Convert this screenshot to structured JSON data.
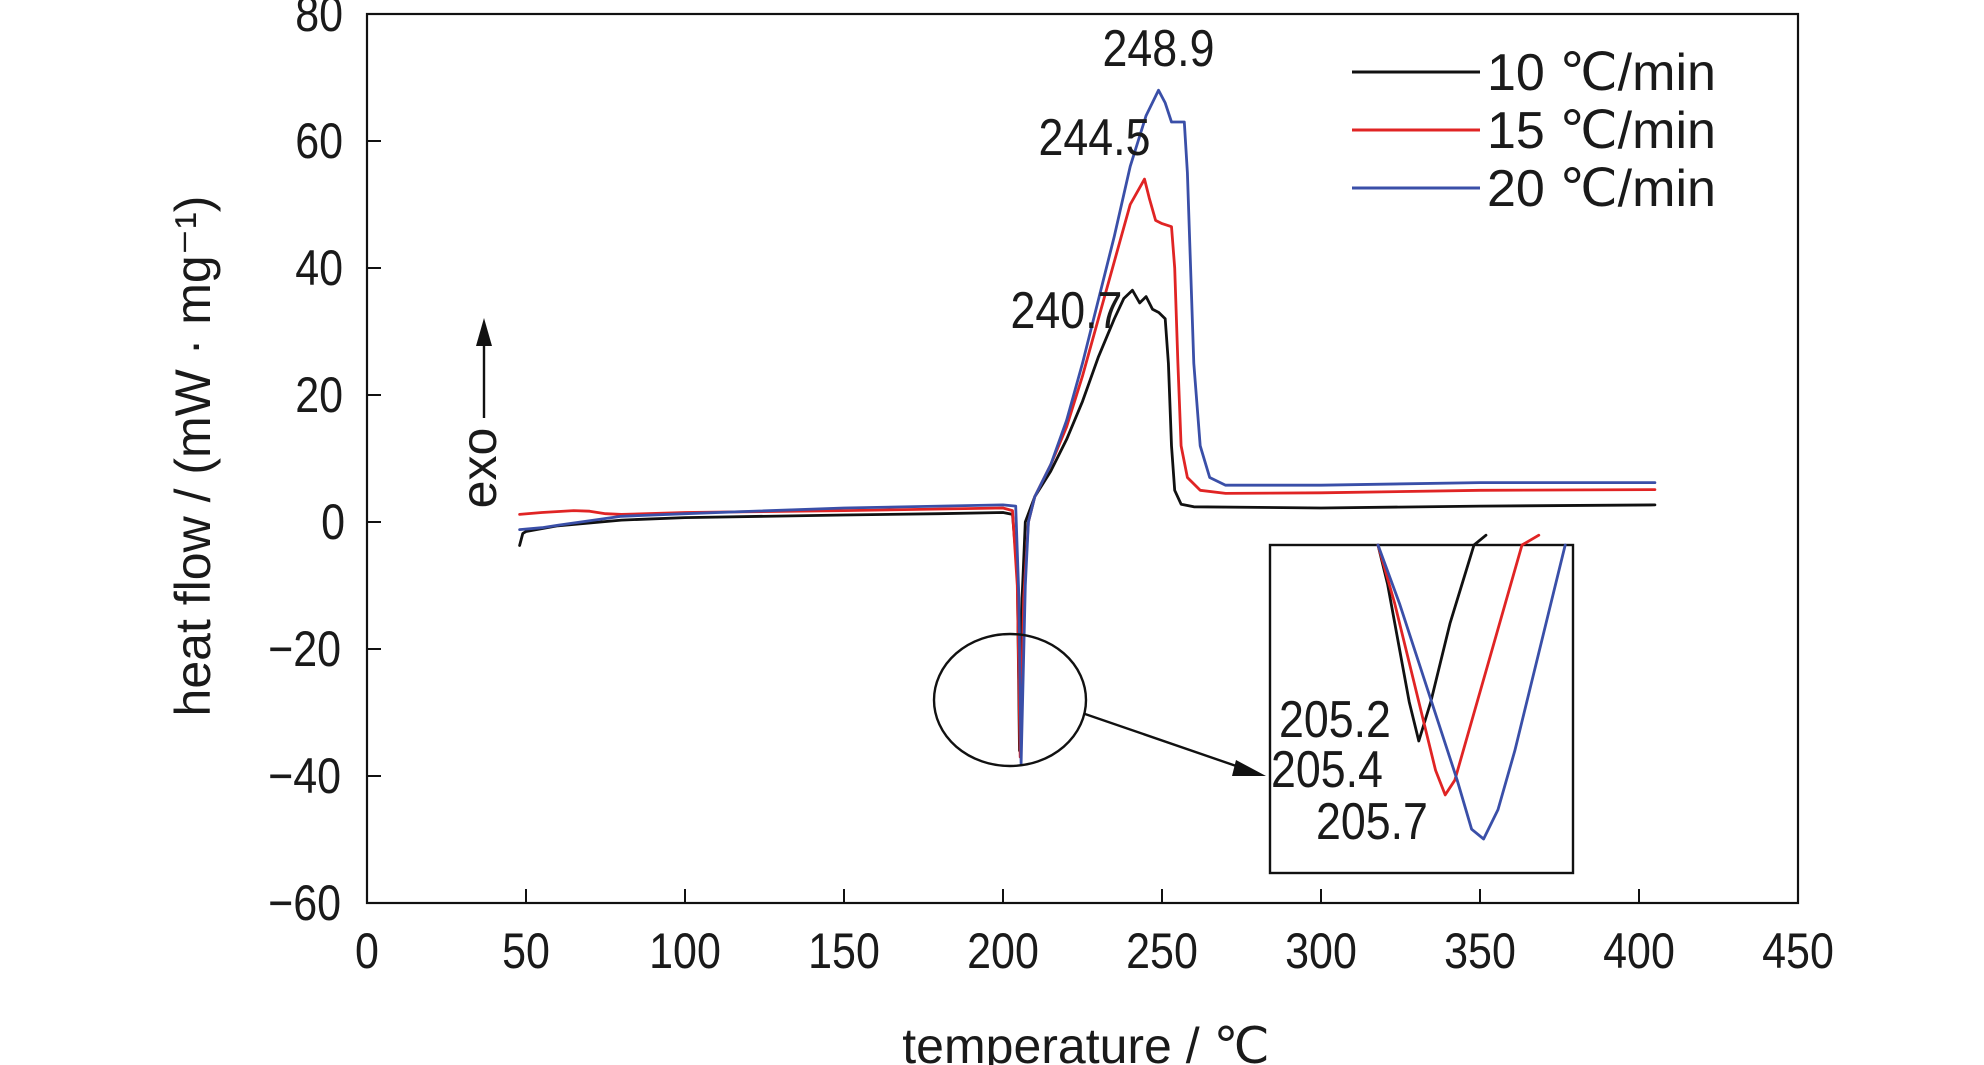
{
  "chart_data": {
    "type": "line",
    "xlabel": "temperature / ℃",
    "ylabel": "heat flow / (mW · mg⁻¹)",
    "xlim": [
      0,
      450
    ],
    "ylim": [
      -60,
      80
    ],
    "x_ticks": [
      0,
      50,
      100,
      150,
      200,
      250,
      300,
      350,
      400,
      450
    ],
    "y_ticks": [
      80,
      60,
      40,
      20,
      0,
      -20,
      -40,
      -60
    ],
    "y_tick_labels": [
      "80",
      "60",
      "40",
      "20",
      "0",
      "−20",
      "−40",
      "−60"
    ],
    "grid": false,
    "legend_position": "top-right",
    "exo_label": "exo",
    "series": [
      {
        "name": "10 ℃/min",
        "color": "#111111",
        "x": [
          48,
          49,
          50,
          60,
          80,
          100,
          150,
          180,
          200,
          203,
          204.5,
          205.2,
          206,
          207,
          210,
          215,
          220,
          225,
          230,
          235,
          238,
          240.7,
          243,
          245,
          247,
          249,
          251,
          252,
          253,
          254,
          256,
          260,
          300,
          350,
          405
        ],
        "y": [
          -3.7,
          -1.8,
          -1.5,
          -0.6,
          0.3,
          0.7,
          1.1,
          1.3,
          1.5,
          1.2,
          -8,
          -36,
          -12,
          0,
          4,
          8,
          13,
          19,
          26,
          32,
          35.2,
          36.5,
          34.5,
          35.5,
          33.5,
          33,
          32,
          25,
          12,
          5,
          2.8,
          2.4,
          2.2,
          2.5,
          2.7
        ]
      },
      {
        "name": "15 ℃/min",
        "color": "#e02424",
        "x": [
          48,
          55,
          65,
          70,
          75,
          80,
          100,
          150,
          200,
          203,
          204.5,
          205.4,
          206.5,
          208,
          210,
          215,
          220,
          225,
          230,
          235,
          240,
          244.5,
          246,
          248,
          250,
          253,
          254,
          255,
          256,
          258,
          262,
          270,
          300,
          350,
          405
        ],
        "y": [
          1.2,
          1.5,
          1.8,
          1.7,
          1.3,
          1.2,
          1.5,
          1.8,
          2.2,
          1.8,
          -10,
          -37,
          -12,
          0,
          4,
          9,
          15,
          23,
          32,
          41,
          50,
          54,
          51,
          47.5,
          47,
          46.5,
          40,
          25,
          12,
          7,
          5,
          4.5,
          4.6,
          5,
          5.1
        ]
      },
      {
        "name": "20 ℃/min",
        "color": "#3a4fa8",
        "x": [
          48,
          55,
          60,
          80,
          100,
          150,
          200,
          204,
          205,
          205.7,
          207,
          208,
          210,
          215,
          220,
          225,
          230,
          235,
          240,
          245,
          248.9,
          251,
          253,
          255,
          257,
          258,
          259,
          260,
          262,
          265,
          270,
          300,
          350,
          405
        ],
        "y": [
          -1.2,
          -0.9,
          -0.5,
          0.9,
          1.3,
          2.2,
          2.7,
          2.5,
          -12,
          -38,
          -10,
          0,
          4,
          9,
          16,
          25,
          35,
          45,
          56,
          64,
          68,
          66,
          63,
          63,
          63,
          55,
          40,
          25,
          12,
          7,
          5.8,
          5.8,
          6.2,
          6.2
        ]
      }
    ],
    "annotations": [
      {
        "text": "248.9",
        "x": 248.9,
        "y": 68
      },
      {
        "text": "244.5",
        "x": 244.5,
        "y": 54
      },
      {
        "text": "240.7",
        "x": 240.7,
        "y": 36.5
      }
    ],
    "inset": {
      "annotations": [
        {
          "text": "205.2",
          "x": 205.2
        },
        {
          "text": "205.4",
          "x": 205.4
        },
        {
          "text": "205.7",
          "x": 205.7
        }
      ],
      "series": [
        {
          "name": "10 ℃/min",
          "x": [
            339,
            339.8,
            340.4,
            341,
            341.6,
            342.4,
            343.4,
            344.2,
            345,
            346,
            347,
            348
          ],
          "y": [
            0,
            40,
            80,
            120,
            160,
            200,
            160,
            120,
            80,
            40,
            0,
            -10
          ]
        },
        {
          "name": "15 ℃/min",
          "x": [
            339,
            340.4,
            341.6,
            342.8,
            343.8,
            344.6,
            345.4,
            346.8,
            348.2,
            349.6,
            351,
            352.4
          ],
          "y": [
            0,
            60,
            120,
            180,
            230,
            255,
            240,
            180,
            120,
            60,
            0,
            -10
          ]
        },
        {
          "name": "20 ℃/min",
          "x": [
            339,
            340.8,
            342.4,
            344,
            345.6,
            346.8,
            347.8,
            349,
            350.4,
            351.8,
            353.2,
            354.6
          ],
          "y": [
            0,
            60,
            120,
            180,
            240,
            290,
            300,
            270,
            210,
            140,
            70,
            0
          ]
        }
      ]
    }
  }
}
